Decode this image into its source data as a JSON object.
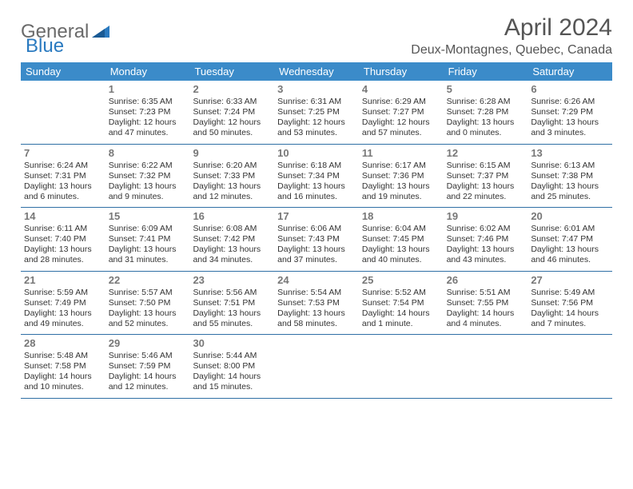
{
  "brand": {
    "word1": "General",
    "word2": "Blue"
  },
  "title": "April 2024",
  "location": "Deux-Montagnes, Quebec, Canada",
  "colors": {
    "header_bg": "#3b8bc9",
    "header_text": "#ffffff",
    "divider": "#2f6fa5",
    "daynum": "#777777",
    "body_text": "#333333",
    "brand_gray": "#6a6a6a",
    "brand_blue": "#2a7ac0"
  },
  "day_labels": [
    "Sunday",
    "Monday",
    "Tuesday",
    "Wednesday",
    "Thursday",
    "Friday",
    "Saturday"
  ],
  "weeks": [
    [
      {
        "n": "",
        "sr": "",
        "ss": "",
        "dl": ""
      },
      {
        "n": "1",
        "sr": "Sunrise: 6:35 AM",
        "ss": "Sunset: 7:23 PM",
        "dl": "Daylight: 12 hours and 47 minutes."
      },
      {
        "n": "2",
        "sr": "Sunrise: 6:33 AM",
        "ss": "Sunset: 7:24 PM",
        "dl": "Daylight: 12 hours and 50 minutes."
      },
      {
        "n": "3",
        "sr": "Sunrise: 6:31 AM",
        "ss": "Sunset: 7:25 PM",
        "dl": "Daylight: 12 hours and 53 minutes."
      },
      {
        "n": "4",
        "sr": "Sunrise: 6:29 AM",
        "ss": "Sunset: 7:27 PM",
        "dl": "Daylight: 12 hours and 57 minutes."
      },
      {
        "n": "5",
        "sr": "Sunrise: 6:28 AM",
        "ss": "Sunset: 7:28 PM",
        "dl": "Daylight: 13 hours and 0 minutes."
      },
      {
        "n": "6",
        "sr": "Sunrise: 6:26 AM",
        "ss": "Sunset: 7:29 PM",
        "dl": "Daylight: 13 hours and 3 minutes."
      }
    ],
    [
      {
        "n": "7",
        "sr": "Sunrise: 6:24 AM",
        "ss": "Sunset: 7:31 PM",
        "dl": "Daylight: 13 hours and 6 minutes."
      },
      {
        "n": "8",
        "sr": "Sunrise: 6:22 AM",
        "ss": "Sunset: 7:32 PM",
        "dl": "Daylight: 13 hours and 9 minutes."
      },
      {
        "n": "9",
        "sr": "Sunrise: 6:20 AM",
        "ss": "Sunset: 7:33 PM",
        "dl": "Daylight: 13 hours and 12 minutes."
      },
      {
        "n": "10",
        "sr": "Sunrise: 6:18 AM",
        "ss": "Sunset: 7:34 PM",
        "dl": "Daylight: 13 hours and 16 minutes."
      },
      {
        "n": "11",
        "sr": "Sunrise: 6:17 AM",
        "ss": "Sunset: 7:36 PM",
        "dl": "Daylight: 13 hours and 19 minutes."
      },
      {
        "n": "12",
        "sr": "Sunrise: 6:15 AM",
        "ss": "Sunset: 7:37 PM",
        "dl": "Daylight: 13 hours and 22 minutes."
      },
      {
        "n": "13",
        "sr": "Sunrise: 6:13 AM",
        "ss": "Sunset: 7:38 PM",
        "dl": "Daylight: 13 hours and 25 minutes."
      }
    ],
    [
      {
        "n": "14",
        "sr": "Sunrise: 6:11 AM",
        "ss": "Sunset: 7:40 PM",
        "dl": "Daylight: 13 hours and 28 minutes."
      },
      {
        "n": "15",
        "sr": "Sunrise: 6:09 AM",
        "ss": "Sunset: 7:41 PM",
        "dl": "Daylight: 13 hours and 31 minutes."
      },
      {
        "n": "16",
        "sr": "Sunrise: 6:08 AM",
        "ss": "Sunset: 7:42 PM",
        "dl": "Daylight: 13 hours and 34 minutes."
      },
      {
        "n": "17",
        "sr": "Sunrise: 6:06 AM",
        "ss": "Sunset: 7:43 PM",
        "dl": "Daylight: 13 hours and 37 minutes."
      },
      {
        "n": "18",
        "sr": "Sunrise: 6:04 AM",
        "ss": "Sunset: 7:45 PM",
        "dl": "Daylight: 13 hours and 40 minutes."
      },
      {
        "n": "19",
        "sr": "Sunrise: 6:02 AM",
        "ss": "Sunset: 7:46 PM",
        "dl": "Daylight: 13 hours and 43 minutes."
      },
      {
        "n": "20",
        "sr": "Sunrise: 6:01 AM",
        "ss": "Sunset: 7:47 PM",
        "dl": "Daylight: 13 hours and 46 minutes."
      }
    ],
    [
      {
        "n": "21",
        "sr": "Sunrise: 5:59 AM",
        "ss": "Sunset: 7:49 PM",
        "dl": "Daylight: 13 hours and 49 minutes."
      },
      {
        "n": "22",
        "sr": "Sunrise: 5:57 AM",
        "ss": "Sunset: 7:50 PM",
        "dl": "Daylight: 13 hours and 52 minutes."
      },
      {
        "n": "23",
        "sr": "Sunrise: 5:56 AM",
        "ss": "Sunset: 7:51 PM",
        "dl": "Daylight: 13 hours and 55 minutes."
      },
      {
        "n": "24",
        "sr": "Sunrise: 5:54 AM",
        "ss": "Sunset: 7:53 PM",
        "dl": "Daylight: 13 hours and 58 minutes."
      },
      {
        "n": "25",
        "sr": "Sunrise: 5:52 AM",
        "ss": "Sunset: 7:54 PM",
        "dl": "Daylight: 14 hours and 1 minute."
      },
      {
        "n": "26",
        "sr": "Sunrise: 5:51 AM",
        "ss": "Sunset: 7:55 PM",
        "dl": "Daylight: 14 hours and 4 minutes."
      },
      {
        "n": "27",
        "sr": "Sunrise: 5:49 AM",
        "ss": "Sunset: 7:56 PM",
        "dl": "Daylight: 14 hours and 7 minutes."
      }
    ],
    [
      {
        "n": "28",
        "sr": "Sunrise: 5:48 AM",
        "ss": "Sunset: 7:58 PM",
        "dl": "Daylight: 14 hours and 10 minutes."
      },
      {
        "n": "29",
        "sr": "Sunrise: 5:46 AM",
        "ss": "Sunset: 7:59 PM",
        "dl": "Daylight: 14 hours and 12 minutes."
      },
      {
        "n": "30",
        "sr": "Sunrise: 5:44 AM",
        "ss": "Sunset: 8:00 PM",
        "dl": "Daylight: 14 hours and 15 minutes."
      },
      {
        "n": "",
        "sr": "",
        "ss": "",
        "dl": ""
      },
      {
        "n": "",
        "sr": "",
        "ss": "",
        "dl": ""
      },
      {
        "n": "",
        "sr": "",
        "ss": "",
        "dl": ""
      },
      {
        "n": "",
        "sr": "",
        "ss": "",
        "dl": ""
      }
    ]
  ]
}
